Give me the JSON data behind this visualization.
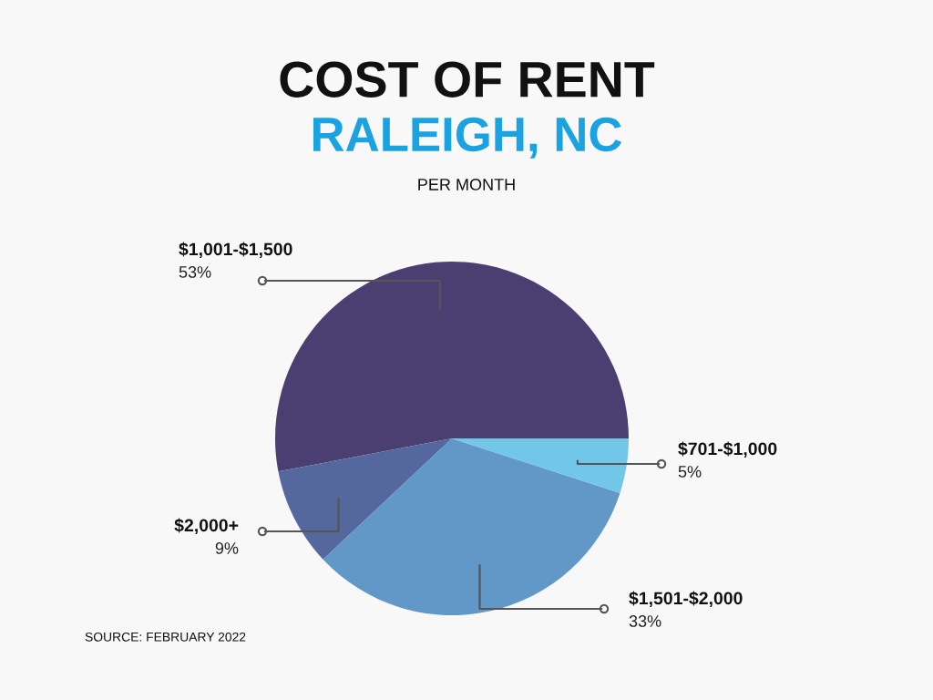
{
  "chart_data": {
    "type": "pie",
    "title": "COST OF RENT",
    "subtitle": "RALEIGH, NC",
    "annotations": [
      "PER MONTH",
      "SOURCE: FEBRUARY 2022"
    ],
    "categories": [
      "$1,001-$1,500",
      "$2,000+",
      "$1,501-$2,000",
      "$701-$1,000"
    ],
    "values": [
      53,
      9,
      33,
      5
    ],
    "value_labels": [
      "53%",
      "9%",
      "33%",
      "5%"
    ],
    "colors": [
      "#4b3f72",
      "#55689e",
      "#6198c8",
      "#72c6e8"
    ],
    "legend": false
  }
}
